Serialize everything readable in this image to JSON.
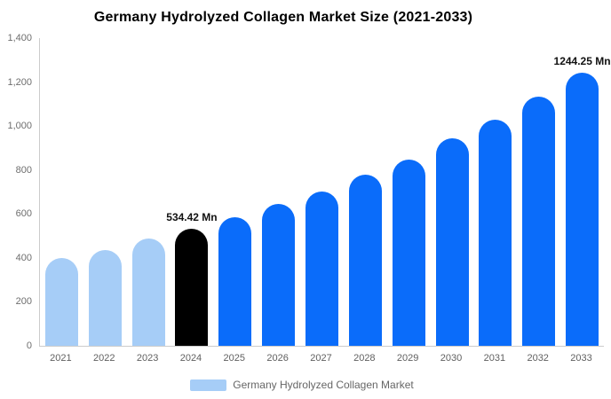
{
  "title": "Germany Hydrolyzed Collagen Market Size (2021-2033)",
  "legend": {
    "label": "Germany Hydrolyzed Collagen Market",
    "swatch_color": "#a6cdf7"
  },
  "colors": {
    "historical_bar": "#a6cdf7",
    "base_year_bar": "#000000",
    "forecast_bar": "#0a6cfa",
    "axis_line": "#cccccc",
    "tick_text": "#6e6e6e",
    "annotation_text": "#111111"
  },
  "chart_data": {
    "type": "bar",
    "title": "Germany Hydrolyzed Collagen Market Size (2021-2033)",
    "series_name": "Germany Hydrolyzed Collagen Market",
    "unit": "Mn",
    "categories": [
      "2021",
      "2022",
      "2023",
      "2024",
      "2025",
      "2026",
      "2027",
      "2028",
      "2029",
      "2030",
      "2031",
      "2032",
      "2033"
    ],
    "values": [
      400,
      437,
      487,
      534.42,
      584,
      644,
      704,
      780,
      848,
      943,
      1027,
      1132,
      1244.25
    ],
    "bar_colors": [
      "#a6cdf7",
      "#a6cdf7",
      "#a6cdf7",
      "#000000",
      "#0a6cfa",
      "#0a6cfa",
      "#0a6cfa",
      "#0a6cfa",
      "#0a6cfa",
      "#0a6cfa",
      "#0a6cfa",
      "#0a6cfa",
      "#0a6cfa"
    ],
    "annotations": [
      {
        "category": "2024",
        "text": "534.42 Mn"
      },
      {
        "category": "2033",
        "text": "1244.25 Mn"
      }
    ],
    "xlabel": "",
    "ylabel": "",
    "ylim": [
      0,
      1400
    ],
    "y_ticks": [
      {
        "value": 0,
        "label": "0"
      },
      {
        "value": 200,
        "label": "200"
      },
      {
        "value": 400,
        "label": "400"
      },
      {
        "value": 600,
        "label": "600"
      },
      {
        "value": 800,
        "label": "800"
      },
      {
        "value": 1000,
        "label": "1,000"
      },
      {
        "value": 1200,
        "label": "1,200"
      },
      {
        "value": 1400,
        "label": "1,400"
      }
    ],
    "grid": false,
    "legend_position": "bottom"
  }
}
